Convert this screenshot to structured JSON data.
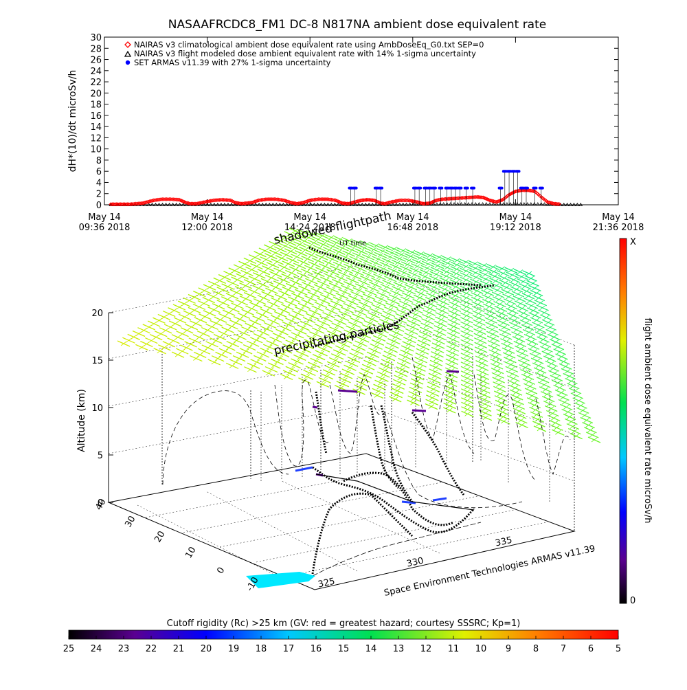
{
  "chart_data": [
    {
      "type": "scatter",
      "title": "NASAAFRCDC8_FM1 DC-8    N817NA ambient dose equivalent rate",
      "ylabel": "dH*(10)/dt microSv/h",
      "ylim": [
        0,
        30
      ],
      "y_ticks": [
        0,
        2,
        4,
        6,
        8,
        10,
        12,
        14,
        16,
        18,
        20,
        22,
        24,
        26,
        28,
        30
      ],
      "x_range_hours": [
        0,
        12
      ],
      "x_ticks": [
        {
          "h": 0,
          "line1": "May 14",
          "line2": "09:36 2018"
        },
        {
          "h": 2.4,
          "line1": "May 14",
          "line2": "12:00 2018"
        },
        {
          "h": 4.8,
          "line1": "May 14",
          "line2": "14:24 2018"
        },
        {
          "h": 7.2,
          "line1": "May 14",
          "line2": "16:48 2018"
        },
        {
          "h": 9.6,
          "line1": "May 14",
          "line2": "19:12 2018"
        },
        {
          "h": 12,
          "line1": "May 14",
          "line2": "21:36 2018"
        }
      ],
      "legend": [
        {
          "marker": "diamond",
          "color": "#ff0000",
          "label": "NAIRAS v3 climatological ambient dose equivalent rate using AmbDoseEq_G0.txt SEP=0"
        },
        {
          "marker": "triangle",
          "color": "#000000",
          "label": "NAIRAS v3 flight modeled dose ambient equivalent rate with 14% 1-sigma uncertainty"
        },
        {
          "marker": "dot",
          "color": "#0000ff",
          "label": "SET ARMAS v11.39 with 27% 1-sigma uncertainty"
        }
      ],
      "series": [
        {
          "name": "NAIRAS v3 climatological ambient dose equivalent rate using AmbDoseEq_G0.txt SEP=0",
          "color": "#ff0000",
          "points": [
            [
              0.15,
              0.1
            ],
            [
              0.6,
              0.1
            ],
            [
              0.9,
              0.3
            ],
            [
              1.15,
              0.8
            ],
            [
              1.35,
              1.0
            ],
            [
              1.55,
              1.0
            ],
            [
              1.75,
              0.9
            ],
            [
              1.9,
              0.4
            ],
            [
              2.0,
              0.2
            ],
            [
              2.15,
              0.2
            ],
            [
              2.35,
              0.5
            ],
            [
              2.55,
              0.8
            ],
            [
              2.75,
              0.9
            ],
            [
              2.95,
              0.8
            ],
            [
              3.05,
              0.4
            ],
            [
              3.2,
              0.2
            ],
            [
              3.45,
              0.4
            ],
            [
              3.6,
              0.8
            ],
            [
              3.8,
              1.0
            ],
            [
              4.0,
              1.0
            ],
            [
              4.2,
              0.8
            ],
            [
              4.35,
              0.4
            ],
            [
              4.5,
              0.2
            ],
            [
              4.65,
              0.4
            ],
            [
              4.8,
              0.8
            ],
            [
              5.0,
              1.0
            ],
            [
              5.2,
              1.0
            ],
            [
              5.4,
              0.8
            ],
            [
              5.55,
              0.3
            ],
            [
              5.7,
              0.2
            ],
            [
              5.85,
              0.5
            ],
            [
              6.0,
              0.8
            ],
            [
              6.15,
              0.9
            ],
            [
              6.3,
              0.8
            ],
            [
              6.45,
              0.3
            ],
            [
              6.55,
              0.2
            ],
            [
              6.7,
              0.5
            ],
            [
              6.9,
              0.8
            ],
            [
              7.1,
              0.8
            ],
            [
              7.3,
              0.5
            ],
            [
              7.45,
              0.2
            ],
            [
              7.6,
              0.3
            ],
            [
              7.75,
              0.8
            ],
            [
              7.9,
              1.0
            ],
            [
              8.1,
              1.1
            ],
            [
              8.3,
              1.2
            ],
            [
              8.5,
              1.3
            ],
            [
              8.7,
              1.4
            ],
            [
              8.85,
              1.3
            ],
            [
              9.0,
              0.8
            ],
            [
              9.15,
              0.5
            ],
            [
              9.3,
              0.9
            ],
            [
              9.45,
              1.8
            ],
            [
              9.6,
              2.4
            ],
            [
              9.75,
              2.6
            ],
            [
              9.9,
              2.6
            ],
            [
              10.05,
              2.4
            ],
            [
              10.2,
              1.4
            ],
            [
              10.35,
              0.5
            ],
            [
              10.5,
              0.2
            ],
            [
              10.65,
              0.1
            ]
          ]
        },
        {
          "name": "NAIRAS v3 flight modeled dose ambient equivalent rate with 14% 1-sigma uncertainty",
          "color": "#000000",
          "points": [
            [
              0.15,
              0.0
            ],
            [
              2.0,
              0.0
            ],
            [
              4.5,
              0.0
            ],
            [
              6.5,
              0.0
            ],
            [
              8.0,
              0.1
            ],
            [
              9.0,
              0.1
            ],
            [
              10.2,
              0.1
            ],
            [
              10.65,
              0.0
            ],
            [
              11.2,
              0.0
            ]
          ]
        },
        {
          "name": "SET ARMAS v11.39 with 27% 1-sigma uncertainty",
          "color": "#0000ff",
          "points": [
            [
              5.75,
              3.0
            ],
            [
              5.85,
              3.0
            ],
            [
              6.35,
              3.0
            ],
            [
              6.45,
              3.0
            ],
            [
              7.25,
              3.0
            ],
            [
              7.35,
              3.0
            ],
            [
              7.5,
              3.0
            ],
            [
              7.6,
              3.0
            ],
            [
              7.7,
              3.0
            ],
            [
              7.85,
              3.0
            ],
            [
              8.0,
              3.0
            ],
            [
              8.1,
              3.0
            ],
            [
              8.2,
              3.0
            ],
            [
              8.3,
              3.0
            ],
            [
              8.45,
              3.0
            ],
            [
              8.6,
              3.0
            ],
            [
              9.25,
              3.0
            ],
            [
              9.35,
              6.0
            ],
            [
              9.45,
              6.0
            ],
            [
              9.55,
              6.0
            ],
            [
              9.65,
              6.0
            ],
            [
              9.75,
              3.0
            ],
            [
              9.85,
              3.0
            ],
            [
              10.05,
              3.0
            ],
            [
              10.2,
              3.0
            ]
          ]
        }
      ]
    },
    {
      "type": "scatter",
      "subtype": "3d-flight-track",
      "zlabel": "Altitude (km)",
      "z_ticks": [
        0,
        5,
        10,
        15,
        20
      ],
      "zlim": [
        0,
        21
      ],
      "latitude_ticks": [
        -10,
        0,
        10,
        20,
        30,
        40
      ],
      "longitude_ticks": [
        325,
        330,
        335
      ],
      "labels": {
        "shadowed": "shadowed flightpath",
        "ut_time": "UT time",
        "precip": "precipitating particles",
        "set": "Space Environment Technologies ARMAS v11.39"
      },
      "right_colorbar": {
        "label": "flight ambient dose equivalent rate microSv/h",
        "top_label": "X",
        "bottom_label": "0"
      },
      "bottom_colorbar": {
        "title": "Cutoff rigidity (Rc) >25 km (GV: red = greatest hazard; courtesy SSSRC; Kp=1)",
        "ticks": [
          25,
          24,
          23,
          22,
          21,
          20,
          19,
          18,
          17,
          16,
          15,
          14,
          13,
          12,
          11,
          10,
          9,
          8,
          7,
          6,
          5
        ]
      }
    }
  ]
}
